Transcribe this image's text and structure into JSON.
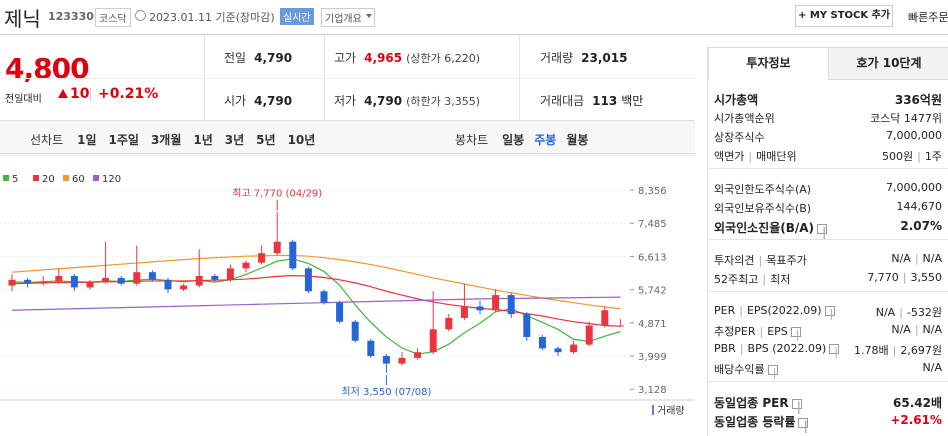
{
  "header": {
    "name": "제닉",
    "code": "123330",
    "market": "코스닥",
    "date": "2023.01.11 기준(장마감)",
    "realtime": "실시간",
    "company_info": "기업개요",
    "my_stock": "+ MY STOCK 추가",
    "quick_order": "빠른주문"
  },
  "price": {
    "current": "4,800",
    "change_label": "전일대비",
    "change": "10",
    "rate": "+0.21%"
  },
  "summary": {
    "rows": [
      [
        {
          "label": "전일",
          "value": "4,790"
        },
        {
          "label": "고가",
          "value": "4,965",
          "note": "(상한가 6,220)",
          "up": true
        },
        {
          "label": "거래량",
          "value": "23,015"
        }
      ],
      [
        {
          "label": "시가",
          "value": "4,790"
        },
        {
          "label": "저가",
          "value": "4,790",
          "note": "(하한가 3,355)"
        },
        {
          "label": "거래대금",
          "value": "113",
          "unit": "백만"
        }
      ]
    ]
  },
  "chart_tabs": {
    "line_label": "선차트",
    "line": [
      "1일",
      "1주일",
      "3개월",
      "1년",
      "3년",
      "5년",
      "10년"
    ],
    "candle_label": "봉차트",
    "candle": [
      "일봉",
      "주봉",
      "월봉"
    ],
    "active_candle": 1
  },
  "chart_data": {
    "type": "candlestick",
    "ohlc": [
      [
        5850,
        6150,
        5700,
        6000
      ],
      [
        6000,
        6050,
        5800,
        5900
      ],
      [
        5900,
        6100,
        5850,
        5950
      ],
      [
        5950,
        6300,
        5900,
        6100
      ],
      [
        6100,
        6150,
        5700,
        5800
      ],
      [
        5800,
        6000,
        5750,
        5950
      ],
      [
        5950,
        7000,
        5900,
        6050
      ],
      [
        6050,
        6100,
        5850,
        5900
      ],
      [
        5900,
        6900,
        5850,
        6200
      ],
      [
        6200,
        6250,
        5950,
        6000
      ],
      [
        6000,
        6050,
        5650,
        5750
      ],
      [
        5750,
        5900,
        5700,
        5850
      ],
      [
        5850,
        6800,
        5800,
        6100
      ],
      [
        6100,
        6150,
        5950,
        6000
      ],
      [
        6000,
        6400,
        5950,
        6300
      ],
      [
        6300,
        6500,
        6200,
        6450
      ],
      [
        6450,
        6900,
        6400,
        6700
      ],
      [
        6700,
        7770,
        6650,
        7000
      ],
      [
        7000,
        7050,
        6250,
        6300
      ],
      [
        6300,
        6350,
        5650,
        5700
      ],
      [
        5700,
        5750,
        5350,
        5400
      ],
      [
        5400,
        5450,
        4850,
        4900
      ],
      [
        4900,
        4950,
        4350,
        4400
      ],
      [
        4400,
        4450,
        3950,
        4000
      ],
      [
        4000,
        4050,
        3550,
        3800
      ],
      [
        3800,
        4100,
        3750,
        3950
      ],
      [
        3950,
        4200,
        3900,
        4100
      ],
      [
        4100,
        5700,
        4050,
        4700
      ],
      [
        4700,
        5100,
        4650,
        5000
      ],
      [
        5000,
        5900,
        4950,
        5300
      ],
      [
        5300,
        5450,
        5100,
        5200
      ],
      [
        5200,
        5750,
        5150,
        5600
      ],
      [
        5600,
        5650,
        5000,
        5100
      ],
      [
        5100,
        5150,
        4400,
        4500
      ],
      [
        4500,
        4550,
        4150,
        4200
      ],
      [
        4200,
        4250,
        4000,
        4100
      ],
      [
        4100,
        4400,
        4050,
        4300
      ],
      [
        4300,
        4900,
        4250,
        4800
      ],
      [
        4800,
        5300,
        4750,
        5200
      ],
      [
        4790,
        4965,
        4790,
        4800
      ]
    ],
    "up_color": "#e8363e",
    "down_color": "#2466d8",
    "series": [
      {
        "name": "5",
        "color": "#3cb83c",
        "values": [
          5950,
          5930,
          5950,
          5970,
          5950,
          5940,
          5970,
          5960,
          5990,
          6020,
          5980,
          5950,
          5980,
          5940,
          6000,
          6140,
          6310,
          6490,
          6550,
          6430,
          6220,
          5860,
          5340,
          4880,
          4500,
          4210,
          4050,
          4110,
          4310,
          4610,
          4860,
          5160,
          5240,
          5060,
          4880,
          4700,
          4440,
          4380,
          4520,
          4640
        ]
      },
      {
        "name": "20",
        "color": "#e8363e",
        "values": [
          5900,
          5910,
          5920,
          5930,
          5930,
          5940,
          5950,
          5950,
          5960,
          5970,
          5970,
          5970,
          5980,
          5990,
          6000,
          6020,
          6050,
          6090,
          6110,
          6100,
          6060,
          6000,
          5920,
          5820,
          5700,
          5600,
          5500,
          5420,
          5350,
          5300,
          5250,
          5220,
          5170,
          5110,
          5050,
          4970,
          4900,
          4850,
          4800,
          4780
        ]
      },
      {
        "name": "60",
        "color": "#f0962e",
        "values": [
          6200,
          6230,
          6260,
          6290,
          6320,
          6350,
          6380,
          6410,
          6440,
          6470,
          6500,
          6530,
          6560,
          6580,
          6600,
          6620,
          6630,
          6640,
          6640,
          6620,
          6580,
          6530,
          6470,
          6400,
          6320,
          6230,
          6140,
          6050,
          5970,
          5890,
          5810,
          5730,
          5660,
          5590,
          5520,
          5460,
          5400,
          5340,
          5290,
          5240
        ]
      },
      {
        "name": "120",
        "color": "#9b5fc8",
        "values": [
          5200,
          5210,
          5220,
          5230,
          5240,
          5250,
          5260,
          5270,
          5280,
          5290,
          5300,
          5310,
          5320,
          5330,
          5340,
          5350,
          5360,
          5370,
          5380,
          5390,
          5400,
          5410,
          5420,
          5430,
          5440,
          5450,
          5460,
          5470,
          5480,
          5490,
          5500,
          5505,
          5510,
          5515,
          5520,
          5525,
          5530,
          5535,
          5540,
          5545
        ]
      }
    ],
    "ylim": [
      2950,
      8620
    ],
    "yticks": [
      {
        "value": 8356,
        "label": "8,356"
      },
      {
        "value": 7485,
        "label": "7,485"
      },
      {
        "value": 6613,
        "label": "6,613"
      },
      {
        "value": 5742,
        "label": "5,742"
      },
      {
        "value": 4871,
        "label": "4,871"
      },
      {
        "value": 3999,
        "label": "3,999"
      },
      {
        "value": 3128,
        "label": "3,128"
      }
    ],
    "grid": true,
    "annotations": [
      {
        "text": "최고 7,770 (04/29)",
        "color": "#e8363e"
      },
      {
        "text": "최저 3,550 (07/08)",
        "color": "#2466d8"
      }
    ],
    "volume_label": "거래량"
  },
  "invest_info": {
    "tabs": [
      "투자정보",
      "호가 10단계"
    ],
    "groups": [
      [
        {
          "label": [
            "시가총액"
          ],
          "values": [
            "336억원"
          ],
          "bold": true
        },
        {
          "label": [
            "시가총액순위"
          ],
          "values": [
            "코스닥 1477위"
          ]
        },
        {
          "label": [
            "상장주식수"
          ],
          "values": [
            "7,000,000"
          ]
        },
        {
          "label": [
            "액면가",
            "매매단위"
          ],
          "values": [
            "500원",
            "1주"
          ]
        }
      ],
      [
        {
          "label": [
            "외국인한도주식수(A)"
          ],
          "values": [
            "7,000,000"
          ]
        },
        {
          "label": [
            "외국인보유주식수(B)"
          ],
          "values": [
            "144,670"
          ]
        },
        {
          "label": [
            "외국인소진율(B/A)"
          ],
          "values": [
            "2.07%"
          ],
          "bold": true,
          "help": true
        }
      ],
      [
        {
          "label": [
            "투자의견",
            "목표주가"
          ],
          "values": [
            "N/A",
            "N/A"
          ]
        },
        {
          "label": [
            "52주최고",
            "최저"
          ],
          "values": [
            "7,770",
            "3,550"
          ]
        }
      ],
      [
        {
          "label": [
            "PER",
            "EPS(2022.09)"
          ],
          "values": [
            "N/A",
            "-532원"
          ],
          "help": true
        },
        {
          "label": [
            "추정PER",
            "EPS"
          ],
          "values": [
            "N/A",
            "N/A"
          ],
          "help": true
        },
        {
          "label": [
            "PBR",
            "BPS (2022.09)"
          ],
          "values": [
            "1.78배",
            "2,697원"
          ],
          "help": true
        },
        {
          "label": [
            "배당수익률"
          ],
          "values": [
            "N/A"
          ],
          "help": true
        }
      ],
      [
        {
          "label": [
            "동일업종 PER"
          ],
          "values": [
            "65.42배"
          ],
          "bold": true,
          "help": true
        },
        {
          "label": [
            "동일업종 등락률"
          ],
          "values": [
            "+2.61%"
          ],
          "bold": true,
          "help": true,
          "up": true
        }
      ]
    ]
  }
}
